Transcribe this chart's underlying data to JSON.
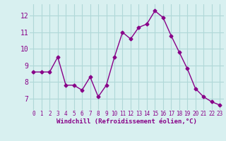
{
  "x": [
    0,
    1,
    2,
    3,
    4,
    5,
    6,
    7,
    8,
    9,
    10,
    11,
    12,
    13,
    14,
    15,
    16,
    17,
    18,
    19,
    20,
    21,
    22,
    23
  ],
  "y": [
    8.6,
    8.6,
    8.6,
    9.5,
    7.8,
    7.8,
    7.5,
    8.3,
    7.1,
    7.8,
    9.5,
    11.0,
    10.6,
    11.3,
    11.5,
    12.3,
    11.9,
    10.8,
    9.8,
    8.8,
    7.6,
    7.1,
    6.8,
    6.6
  ],
  "line_color": "#880088",
  "marker": "D",
  "marker_size": 2.5,
  "bg_color": "#d8f0f0",
  "grid_color": "#b0d8d8",
  "xlabel": "Windchill (Refroidissement éolien,°C)",
  "xlabel_color": "#880088",
  "tick_color": "#880088",
  "ylabel_ticks": [
    7,
    8,
    9,
    10,
    11,
    12
  ],
  "xtick_labels": [
    "0",
    "1",
    "2",
    "3",
    "4",
    "5",
    "6",
    "7",
    "8",
    "9",
    "10",
    "11",
    "12",
    "13",
    "14",
    "15",
    "16",
    "17",
    "18",
    "19",
    "20",
    "21",
    "22",
    "23"
  ],
  "ylim": [
    6.3,
    12.7
  ],
  "xlim": [
    -0.5,
    23.5
  ]
}
